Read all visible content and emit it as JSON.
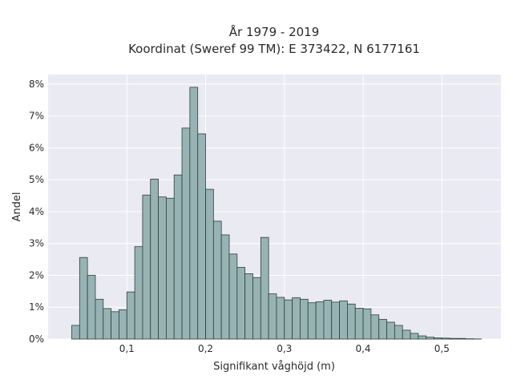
{
  "chart_data": {
    "type": "bar",
    "title_lines": [
      "År 1979 - 2019",
      "Koordinat (Sweref 99 TM): E 373422, N 6177161"
    ],
    "xlabel": "Signifikant våghöjd (m)",
    "ylabel": "Andel",
    "xlim": [
      0.0,
      0.575
    ],
    "ylim": [
      0,
      8.3
    ],
    "bin_width": 0.01,
    "x_ticks": [
      {
        "value": 0.1,
        "label": "0,1"
      },
      {
        "value": 0.2,
        "label": "0,2"
      },
      {
        "value": 0.3,
        "label": "0,3"
      },
      {
        "value": 0.4,
        "label": "0,4"
      },
      {
        "value": 0.5,
        "label": "0,5"
      }
    ],
    "y_ticks": [
      {
        "value": 0,
        "label": "0%"
      },
      {
        "value": 1,
        "label": "1%"
      },
      {
        "value": 2,
        "label": "2%"
      },
      {
        "value": 3,
        "label": "3%"
      },
      {
        "value": 4,
        "label": "4%"
      },
      {
        "value": 5,
        "label": "5%"
      },
      {
        "value": 6,
        "label": "6%"
      },
      {
        "value": 7,
        "label": "7%"
      },
      {
        "value": 8,
        "label": "8%"
      }
    ],
    "bins": [
      0.03,
      0.04,
      0.05,
      0.06,
      0.07,
      0.08,
      0.09,
      0.1,
      0.11,
      0.12,
      0.13,
      0.14,
      0.15,
      0.16,
      0.17,
      0.18,
      0.19,
      0.2,
      0.21,
      0.22,
      0.23,
      0.24,
      0.25,
      0.26,
      0.27,
      0.28,
      0.29,
      0.3,
      0.31,
      0.32,
      0.33,
      0.34,
      0.35,
      0.36,
      0.37,
      0.38,
      0.39,
      0.4,
      0.41,
      0.42,
      0.43,
      0.44,
      0.45,
      0.46,
      0.47,
      0.48,
      0.49,
      0.5,
      0.51,
      0.52,
      0.53,
      0.54
    ],
    "values": [
      0.43,
      2.56,
      2.0,
      1.25,
      0.96,
      0.86,
      0.92,
      1.48,
      2.9,
      4.52,
      5.02,
      4.46,
      4.42,
      5.15,
      6.62,
      7.9,
      6.44,
      4.7,
      3.7,
      3.27,
      2.67,
      2.25,
      2.05,
      1.93,
      3.19,
      1.42,
      1.31,
      1.23,
      1.3,
      1.25,
      1.14,
      1.17,
      1.22,
      1.16,
      1.2,
      1.1,
      0.97,
      0.95,
      0.76,
      0.62,
      0.53,
      0.43,
      0.28,
      0.18,
      0.1,
      0.06,
      0.04,
      0.03,
      0.02,
      0.02,
      0.01,
      0.005
    ],
    "grid": true,
    "colors": {
      "bar_fill": "#97b3b4",
      "bar_edge": "#2f3f3f",
      "plot_background": "#eaeaf2",
      "grid": "#ffffff"
    }
  }
}
